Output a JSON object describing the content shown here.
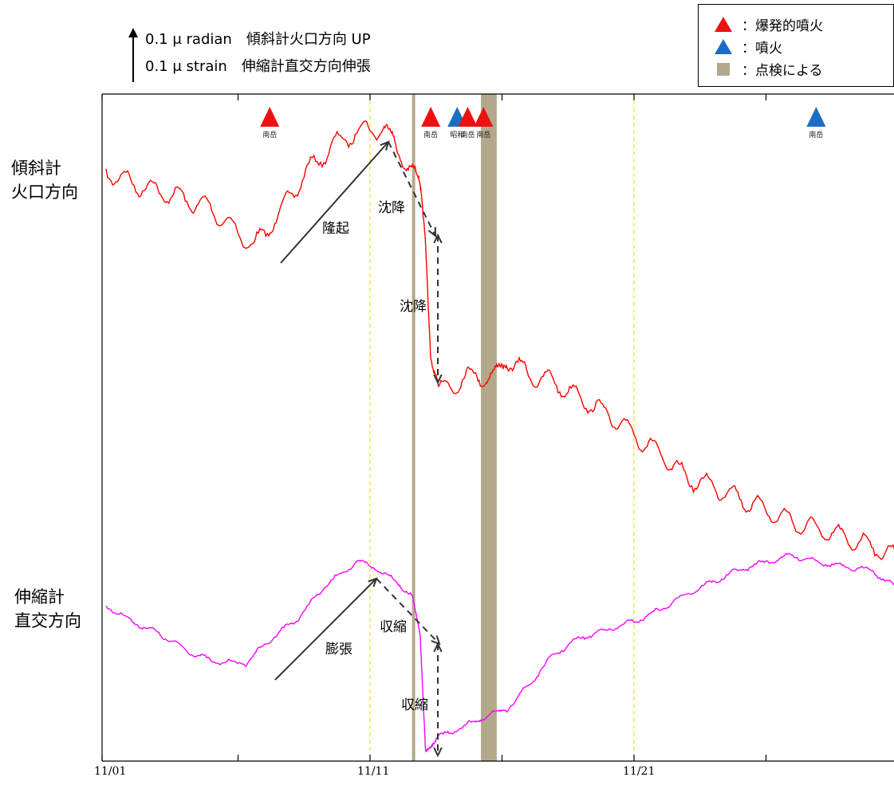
{
  "scale_note": {
    "line1": "0.1 μ radian　傾斜計火口方向 UP",
    "line2": "0.1 μ strain　伸縮計直交方向伸張"
  },
  "side_labels": {
    "tiltmeter": [
      "傾斜計",
      "火口方向"
    ],
    "extensometer": [
      "伸縮計",
      "直交方向"
    ]
  },
  "legend": [
    {
      "label": "：爆発的噴火",
      "symbol": "triangle",
      "color": "#ee1111"
    },
    {
      "label": "：噴火",
      "symbol": "triangle",
      "color": "#1a6fc4"
    },
    {
      "label": "：点検による",
      "symbol": "square",
      "color": "#b3a98a"
    }
  ],
  "annotations": {
    "tilt_uplift": "隆起",
    "tilt_subsidence_slow": "沈降",
    "tilt_subsidence_fast": "沈降",
    "strain_expansion": "膨張",
    "strain_contraction_slow": "収縮",
    "strain_contraction_fast": "収縮"
  },
  "chart_data": {
    "type": "line",
    "x_ticks": [
      "11/01",
      "11/11",
      "11/21"
    ],
    "x_range_days": [
      1,
      31
    ],
    "series": [
      {
        "name": "傾斜計 火口方向",
        "color": "#ff0000",
        "x": [
          1,
          2,
          3,
          4,
          5,
          6.6,
          7.5,
          8.5,
          9.5,
          10.5,
          11.5,
          12,
          12.6,
          12.9,
          13.1,
          13.3,
          13.6,
          14.3,
          15,
          15.7,
          16.2,
          17,
          18,
          19,
          20,
          21,
          22,
          23,
          24,
          25,
          26,
          27,
          28,
          29,
          30,
          31
        ],
        "y": [
          215,
          230,
          240,
          250,
          262,
          310,
          270,
          220,
          185,
          165,
          160,
          185,
          215,
          238,
          295,
          440,
          490,
          480,
          470,
          475,
          450,
          470,
          480,
          500,
          520,
          545,
          570,
          600,
          610,
          625,
          640,
          655,
          665,
          675,
          685,
          700
        ]
      },
      {
        "name": "伸縮計 直交方向",
        "color": "#ff00ff",
        "x": [
          1,
          2,
          3,
          4,
          5,
          6.3,
          7.3,
          8.3,
          9.3,
          10.5,
          11.2,
          12,
          12.6,
          12.9,
          13.1,
          13.3,
          13.6,
          14.3,
          15,
          15.7,
          16.2,
          17,
          18,
          19,
          20,
          21,
          22,
          23,
          24,
          25,
          26,
          27,
          28,
          29,
          30,
          31
        ],
        "y": [
          760,
          780,
          795,
          815,
          830,
          832,
          800,
          775,
          735,
          705,
          712,
          730,
          748,
          800,
          940,
          935,
          925,
          915,
          905,
          895,
          890,
          860,
          820,
          800,
          790,
          780,
          765,
          745,
          730,
          715,
          705,
          697,
          705,
          712,
          715,
          740
        ]
      }
    ],
    "eruption_markers": [
      {
        "day": 7.2,
        "type": "explosive",
        "label": "南岳"
      },
      {
        "day": 13.3,
        "type": "explosive",
        "label": "南岳"
      },
      {
        "day": 14.3,
        "type": "eruption",
        "label": "昭和"
      },
      {
        "day": 14.7,
        "type": "explosive",
        "label": "南岳"
      },
      {
        "day": 15.3,
        "type": "explosive",
        "label": "南岳"
      },
      {
        "day": 27.9,
        "type": "eruption",
        "label": "南岳"
      }
    ],
    "inspection_band": {
      "from_day": 15.2,
      "to_day": 15.8
    },
    "thin_band_day": 12.65
  }
}
